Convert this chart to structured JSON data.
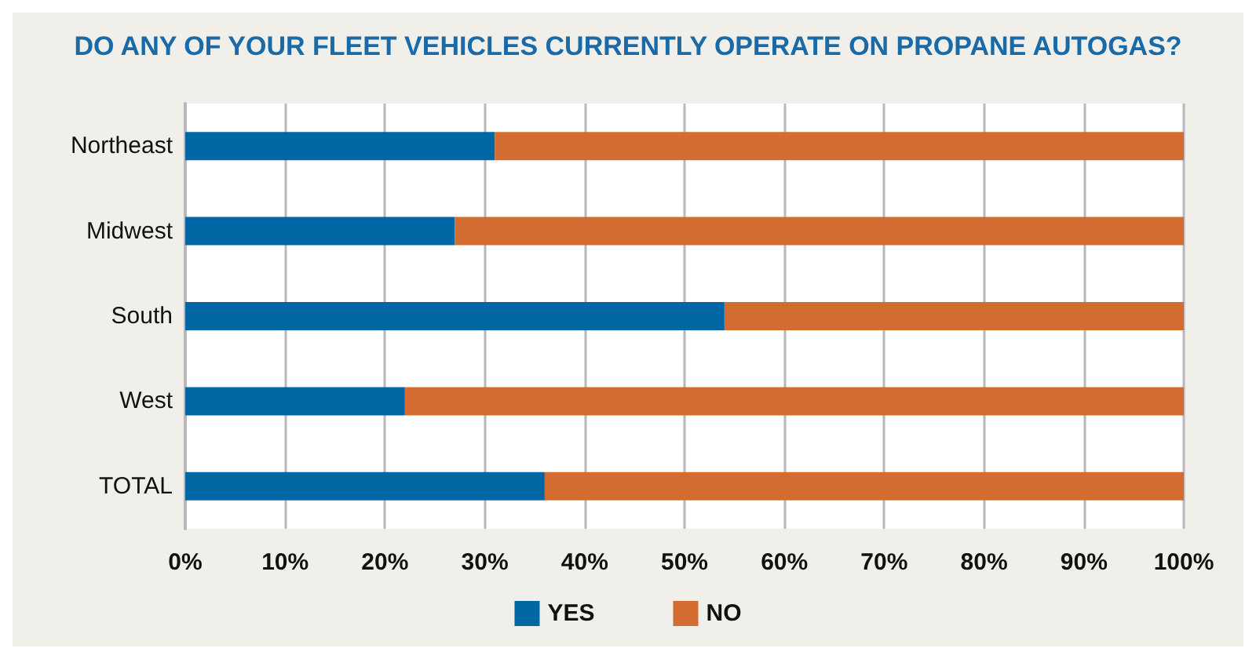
{
  "chart_data": {
    "type": "bar",
    "orientation": "horizontal",
    "stacked": true,
    "title": "DO ANY OF YOUR FLEET VEHICLES CURRENTLY OPERATE ON PROPANE AUTOGAS?",
    "categories": [
      "Northeast",
      "Midwest",
      "South",
      "West",
      "TOTAL"
    ],
    "series": [
      {
        "name": "YES",
        "color": "#0066a4",
        "values": [
          31,
          27,
          54,
          22,
          36
        ]
      },
      {
        "name": "NO",
        "color": "#d26c30",
        "values": [
          69,
          73,
          46,
          78,
          64
        ]
      }
    ],
    "xlim": [
      0,
      100
    ],
    "xticks": [
      {
        "value": 0,
        "label": "0%"
      },
      {
        "value": 10,
        "label": "10%"
      },
      {
        "value": 20,
        "label": "20%"
      },
      {
        "value": 30,
        "label": "30%"
      },
      {
        "value": 40,
        "label": "40%"
      },
      {
        "value": 50,
        "label": "50%"
      },
      {
        "value": 60,
        "label": "60%"
      },
      {
        "value": 70,
        "label": "70%"
      },
      {
        "value": 80,
        "label": "80%"
      },
      {
        "value": 90,
        "label": "90%"
      },
      {
        "value": 100,
        "label": "100%"
      }
    ],
    "grid": "x",
    "legend": "bottom"
  }
}
